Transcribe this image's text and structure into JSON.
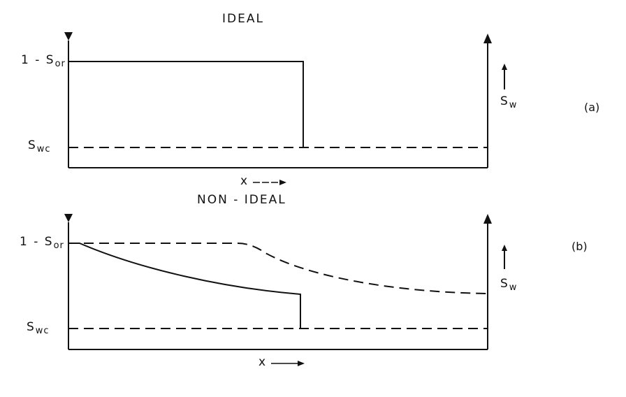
{
  "panels": [
    {
      "tag": "(a)",
      "title": "IDEAL",
      "y_top_label_prefix": "1 - S",
      "y_top_label_sub": "or",
      "y_bottom_label_prefix": "S",
      "y_bottom_label_sub": "wc",
      "right_axis_label_prefix": "S",
      "right_axis_label_sub": "w",
      "x_label": "x"
    },
    {
      "tag": "(b)",
      "title": "NON - IDEAL",
      "y_top_label_prefix": "1 - S",
      "y_top_label_sub": "or",
      "y_bottom_label_prefix": "S",
      "y_bottom_label_sub": "wc",
      "right_axis_label_prefix": "S",
      "right_axis_label_sub": "w",
      "x_label": "x"
    }
  ]
}
